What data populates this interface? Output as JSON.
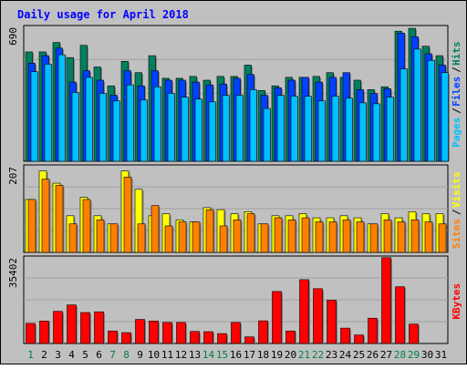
{
  "chart_data": {
    "type": "bar",
    "title": "Daily usage for April 2018",
    "categories": [
      "1",
      "2",
      "3",
      "4",
      "5",
      "6",
      "7",
      "8",
      "9",
      "10",
      "11",
      "12",
      "13",
      "14",
      "15",
      "16",
      "17",
      "18",
      "19",
      "20",
      "21",
      "22",
      "23",
      "24",
      "25",
      "26",
      "27",
      "28",
      "29",
      "30",
      "31"
    ],
    "weekend_days": [
      "1",
      "7",
      "8",
      "14",
      "15",
      "21",
      "22",
      "28",
      "29"
    ],
    "panels": [
      {
        "id": "top",
        "max_label": "690",
        "ylim": [
          0,
          720
        ],
        "axis_labels": [
          {
            "text": "Pages",
            "color": "#00c0ff"
          },
          {
            "text": "Files",
            "color": "#0040ff"
          },
          {
            "text": "Hits",
            "color": "#008060"
          }
        ],
        "series": [
          {
            "name": "Hits",
            "color": "#008060",
            "values": [
              580,
              580,
              630,
              550,
              615,
              500,
              400,
              530,
              470,
              560,
              440,
              440,
              450,
              430,
              450,
              450,
              510,
              375,
              400,
              445,
              445,
              450,
              470,
              445,
              430,
              380,
              395,
              690,
              705,
              610,
              560
            ]
          },
          {
            "name": "Files",
            "color": "#0040ff",
            "values": [
              520,
              560,
              600,
              420,
              480,
              430,
              350,
              480,
              400,
              480,
              430,
              430,
              420,
              405,
              410,
              440,
              460,
              350,
              390,
              430,
              445,
              420,
              445,
              470,
              380,
              360,
              385,
              680,
              660,
              570,
              510
            ]
          },
          {
            "name": "Pages",
            "color": "#00c0ff",
            "values": [
              475,
              515,
              565,
              365,
              445,
              360,
              320,
              405,
              325,
              395,
              360,
              340,
              330,
              315,
              350,
              350,
              380,
              280,
              350,
              345,
              345,
              320,
              345,
              335,
              310,
              305,
              340,
              490,
              595,
              535,
              470
            ]
          }
        ]
      },
      {
        "id": "middle",
        "max_label": "207",
        "ylim": [
          0,
          215
        ],
        "axis_labels": [
          {
            "text": "Sites",
            "color": "#ff8000"
          },
          {
            "text": "Visits",
            "color": "#ffff00"
          }
        ],
        "series": [
          {
            "name": "Visits",
            "color": "#ffff00",
            "values": [
              130,
              200,
              170,
              90,
              135,
              90,
              70,
              200,
              155,
              90,
              95,
              80,
              75,
              110,
              105,
              95,
              100,
              70,
              90,
              90,
              95,
              85,
              85,
              90,
              85,
              70,
              95,
              85,
              100,
              95,
              95
            ]
          },
          {
            "name": "Sites",
            "color": "#ff8000",
            "values": [
              130,
              180,
              165,
              70,
              130,
              80,
              70,
              185,
              70,
              115,
              65,
              75,
              75,
              105,
              65,
              80,
              95,
              70,
              85,
              80,
              85,
              75,
              75,
              80,
              75,
              70,
              80,
              75,
              80,
              75,
              70
            ]
          }
        ]
      },
      {
        "id": "bottom",
        "max_label": "35402",
        "ylim": [
          0,
          37000
        ],
        "axis_labels": [
          {
            "text": "KBytes",
            "color": "#ff0000"
          }
        ],
        "series": [
          {
            "name": "KBytes",
            "color": "#ff0000",
            "values": [
              8500,
              9500,
              13600,
              16300,
              13100,
              13400,
              5300,
              4600,
              10200,
              9500,
              8900,
              8900,
              5100,
              5000,
              4200,
              8900,
              2800,
              9600,
              22000,
              5300,
              27000,
              23200,
              18300,
              6500,
              3600,
              10700,
              36300,
              24000,
              8200,
              0,
              0
            ]
          }
        ]
      }
    ]
  }
}
